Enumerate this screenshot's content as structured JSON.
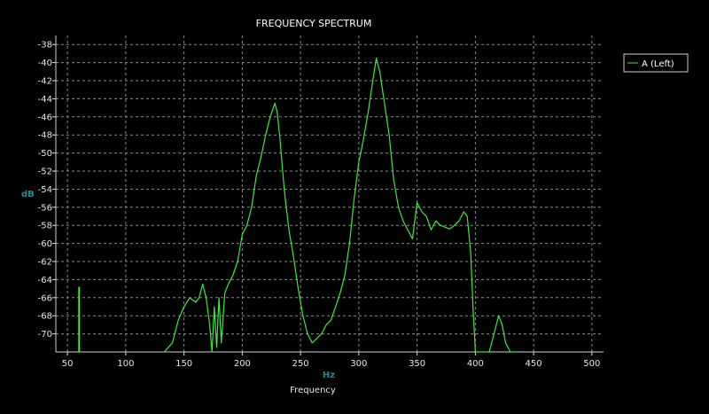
{
  "colors": {
    "background": "#000000",
    "grid": "#8a8a8a",
    "series": "#3ce93c",
    "unit_label": "#1e8c96",
    "text": "#e6e6e6"
  },
  "chart_data": {
    "type": "line",
    "title": "FREQUENCY SPECTRUM",
    "xlabel": "Frequency",
    "xunit": "Hz",
    "ylabel": "dB",
    "xlim": [
      40,
      510
    ],
    "ylim": [
      -72,
      -37
    ],
    "x_ticks": [
      50,
      100,
      150,
      200,
      250,
      300,
      350,
      400,
      450,
      500
    ],
    "y_ticks": [
      -38,
      -40,
      -42,
      -44,
      -46,
      -48,
      -50,
      -52,
      -54,
      -56,
      -58,
      -60,
      -62,
      -64,
      -66,
      -68,
      -70
    ],
    "grid": true,
    "legend_position": "right",
    "series": [
      {
        "name": "A (Left)",
        "spike": {
          "x": 60,
          "y": -64.8
        },
        "x": [
          133,
          140,
          145,
          150,
          155,
          160,
          163,
          166,
          169,
          172,
          174,
          176,
          178,
          180,
          182,
          185,
          188,
          192,
          196,
          200,
          204,
          208,
          212,
          216,
          220,
          224,
          228,
          230,
          232,
          236,
          240,
          244,
          248,
          252,
          256,
          260,
          264,
          268,
          272,
          276,
          280,
          284,
          288,
          292,
          296,
          300,
          304,
          308,
          312,
          315,
          318,
          322,
          326,
          330,
          334,
          338,
          342,
          346,
          350,
          354,
          358,
          362,
          366,
          370,
          374,
          378,
          382,
          386,
          390,
          393,
          396,
          398,
          400,
          404,
          408,
          412,
          416,
          420,
          423,
          426,
          430,
          434,
          437
        ],
        "y": [
          -72,
          -71,
          -68.5,
          -67,
          -66,
          -66.5,
          -66,
          -64.5,
          -66,
          -69,
          -72,
          -67,
          -71.5,
          -66,
          -71,
          -65.5,
          -64.5,
          -63.5,
          -62,
          -59,
          -58,
          -56,
          -52.5,
          -50.5,
          -48,
          -46,
          -44.5,
          -45.5,
          -48,
          -54,
          -58.5,
          -61.5,
          -65,
          -68,
          -70,
          -71,
          -70.5,
          -70,
          -69,
          -68.5,
          -67,
          -65.5,
          -63.5,
          -60,
          -55,
          -51,
          -48.5,
          -45.5,
          -42,
          -39.5,
          -41,
          -44.5,
          -48,
          -53,
          -56,
          -57.5,
          -58.5,
          -59.5,
          -55.5,
          -56.5,
          -57,
          -58.5,
          -57.5,
          -58,
          -58.2,
          -58.4,
          -58,
          -57.5,
          -56.5,
          -57,
          -61,
          -67,
          -72,
          -72,
          -72,
          -72,
          -70,
          -68,
          -69,
          -71,
          -72,
          -72,
          -72
        ]
      }
    ]
  }
}
